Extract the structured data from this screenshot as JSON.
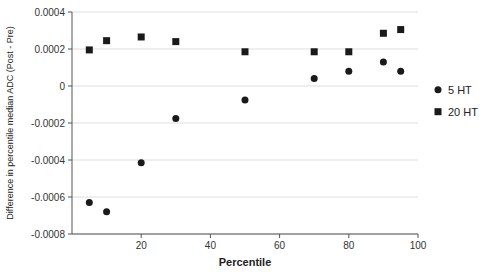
{
  "chart_data": {
    "type": "scatter",
    "xlabel": "Percentile",
    "ylabel": "Difference in percentile median ADC (Post - Pre)",
    "x": [
      5,
      10,
      20,
      30,
      50,
      70,
      80,
      90,
      95
    ],
    "series": [
      {
        "name": "5 HT",
        "color": "#1a1a1a",
        "marker": "circle",
        "values": [
          -0.00063,
          -0.00068,
          -0.000415,
          -0.000175,
          -7.5e-05,
          4e-05,
          8e-05,
          0.00013,
          8e-05
        ]
      },
      {
        "name": "20 HT",
        "color": "#1a1a1a",
        "marker": "square",
        "values": [
          0.000195,
          0.000245,
          0.000265,
          0.00024,
          0.000185,
          0.000185,
          0.000185,
          0.000285,
          0.000305
        ]
      }
    ],
    "xlim": [
      0,
      100
    ],
    "ylim": [
      -0.0008,
      0.0004
    ],
    "xticks": [
      20,
      40,
      60,
      80,
      100
    ],
    "yticks": [
      -0.0008,
      -0.0006,
      -0.0004,
      -0.0002,
      0,
      0.0002,
      0.0004
    ],
    "grid": true,
    "legend": "right"
  }
}
